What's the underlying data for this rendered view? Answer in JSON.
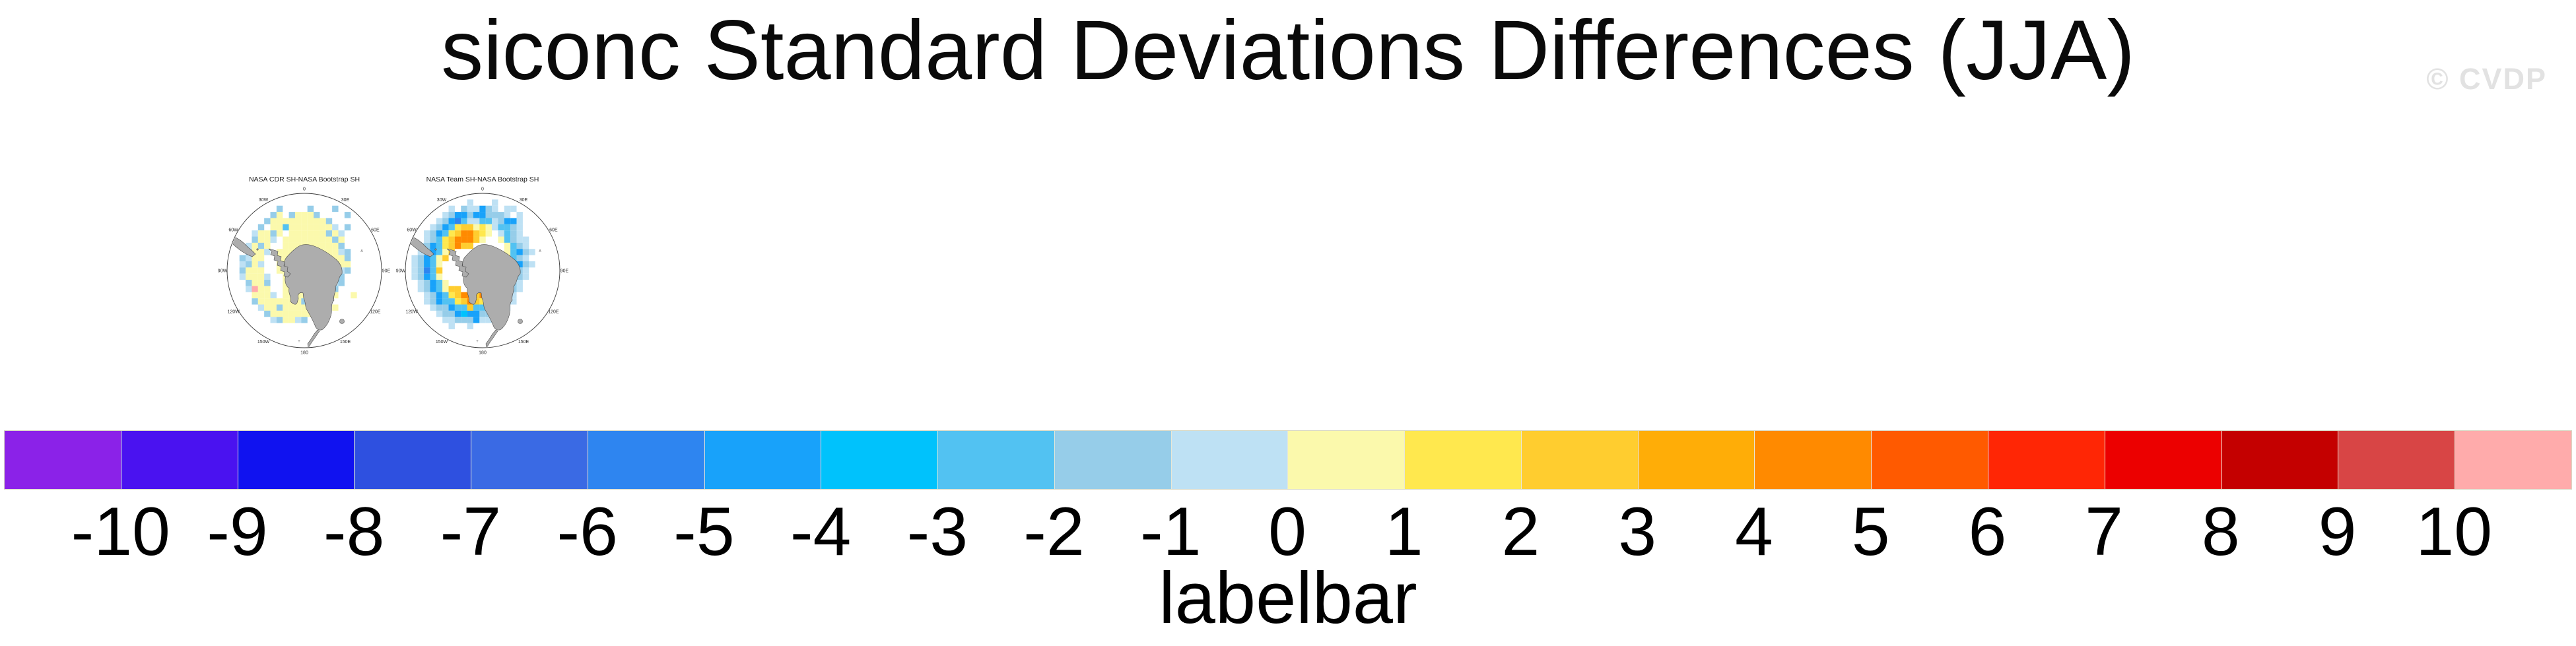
{
  "header": {
    "title": "siconc Standard Deviations Differences (JJA)",
    "watermark": "© CVDP"
  },
  "chart_data": {
    "type": "heatmap",
    "title": "siconc Standard Deviations Differences (JJA)",
    "variable": "siconc",
    "season": "JJA",
    "panels": [
      {
        "title": "NASA CDR SH-NASA Bootstrap SH",
        "projection": "south-polar-stereographic",
        "lon_labels": [
          "0",
          "30E",
          "60E",
          "90E",
          "120E",
          "150E",
          "180",
          "150W",
          "120W",
          "90W",
          "60W",
          "30W"
        ],
        "grid": [
          ".........................",
          ".........................",
          "........b....b...b.......",
          ".......by.byyyb....b.....",
          "......byyyyyyyyyb........",
          ".....b.yysyyyyyyyl.b.....",
          "....lyyby.yyyyyybyl......",
          "....byyl.yyyyyyyyby......",
          "...lyby..yyyyyyyyyb......",
          "...byyl.yyyyyyyyyylb.....",
          "..blyy..yyyyyyyyyyyb.....",
          "..lbyl..yyyyyyyyybyy.....",
          "..byyy..yyyyyyyyyylb.....",
          "..lyyyl..yyyyyyyyyb......",
          "...byyb..yyyyyyyylb......",
          "...lpyy..yyyyyyyyb.......",
          "....yyyl.yyyyyyyly..y....",
          "....byyyyyyybyyyb........",
          ".....lyybyyyyylb.y.......",
          "......byyyyyyyb..........",
          ".......lbyylb............",
          ".........................",
          ".........................",
          ".........................",
          "........................."
        ]
      },
      {
        "title": "NASA Team SH-NASA Bootstrap SH",
        "projection": "south-polar-stereographic",
        "lon_labels": [
          "0",
          "30E",
          "60E",
          "90E",
          "120E",
          "150E",
          "180",
          "150W",
          "120W",
          "90W",
          "60W",
          "30W"
        ],
        "grid": [
          ".........................",
          "..........l...l..........",
          ".......l.blldbl.ll.......",
          "......lbddbddbbbl.l......",
          ".....lbdDsllsslbddl......",
          "....lbdsYggyYylssbl......",
          "...lbdsYgOOgYy.lsbl......",
          "...lbsYgOOOgy..ysbll.....",
          "..lbdsYgOgg.....ysbl.....",
          "..lbdsyg........ysdbl....",
          ".lbdsyg.........gsbl.....",
          ".lbdsy..........ysdbl....",
          ".lbDsg..........gsbl.....",
          ".lbdsy.........ysdbl.....",
          "..lbdsy.......ygsbl......",
          "..lbdsygg...ygOosbl......",
          "...lbdsYgOOgOOgsbl.......",
          "...lbdssYgOgYysdbl.......",
          "....lbbdssgssddbl........",
          ".....lbbdcddbbl..........",
          "......llbbbdll...........",
          ".......l..l..............",
          ".........................",
          ".........................",
          "........................."
        ]
      }
    ],
    "colorbar": {
      "label": "labelbar",
      "value_range": [
        -10,
        10
      ],
      "tick_labels": [
        "-10",
        "-9",
        "-8",
        "-7",
        "-6",
        "-5",
        "-4",
        "-3",
        "-2",
        "-1",
        "0",
        "1",
        "2",
        "3",
        "4",
        "5",
        "6",
        "7",
        "8",
        "9",
        "10"
      ],
      "colors": [
        "#8B22E8",
        "#4A12F0",
        "#1012F0",
        "#2E50E0",
        "#3A6AE4",
        "#2E85F0",
        "#18A2FA",
        "#00C2FC",
        "#52C2F2",
        "#96CDE9",
        "#BEE1F4",
        "#FBF9AC",
        "#FFE84E",
        "#FFCD2F",
        "#FFAD07",
        "#FF8A00",
        "#FF5A00",
        "#FF2605",
        "#EC0000",
        "#C40000",
        "#D84545",
        "#FFABAB"
      ],
      "cell_colors": {
        "y": "#FBF9AC",
        "Y": "#FFE84E",
        "g": "#FFCD2F",
        "o": "#FFAD07",
        "O": "#FF8A00",
        "l": "#BEE1F4",
        "b": "#96CDE9",
        "s": "#52C2F2",
        "c": "#00C2FC",
        "d": "#18A2FA",
        "D": "#2E85F0",
        "p": "#FFABAB"
      },
      "land_color": "#ADADAD",
      "coast_color": "#4a4a4a"
    }
  }
}
